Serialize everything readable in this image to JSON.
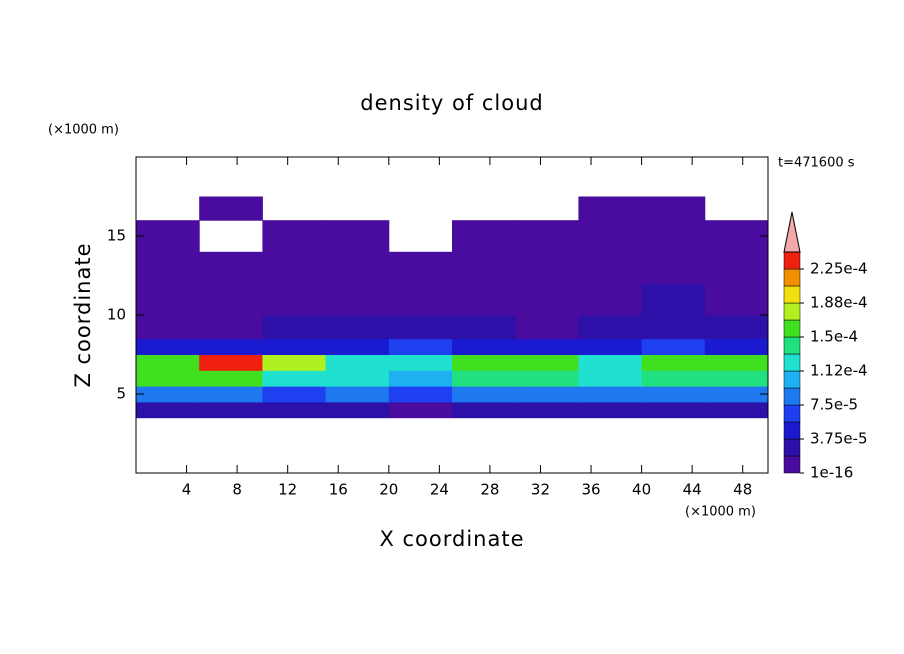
{
  "chart_data": {
    "type": "contour",
    "title": "density of cloud",
    "x_label": "X coordinate",
    "y_label": "Z coordinate",
    "x_unit": "(×1000 m)",
    "y_unit": "(×1000 m)",
    "time_label": "t=471600 s",
    "xlim": [
      0,
      50
    ],
    "ylim": [
      0,
      20
    ],
    "xticks": [
      4,
      8,
      12,
      16,
      20,
      24,
      28,
      32,
      36,
      40,
      44,
      48
    ],
    "yticks": [
      5,
      10,
      15
    ],
    "x_edges": [
      0,
      5,
      10,
      15,
      20,
      25,
      30,
      35,
      40,
      45,
      50
    ],
    "y_edges": [
      3.5,
      4.5,
      5.5,
      6.5,
      7.5,
      8.5,
      10,
      12,
      14,
      16,
      17.5
    ],
    "z": [
      [
        2.5e-05,
        2.5e-05,
        2e-05,
        2.5e-05,
        1.5e-05,
        2.5e-05,
        2.5e-05,
        2e-05,
        2.5e-05,
        2.5e-05
      ],
      [
        9e-05,
        9e-05,
        6e-05,
        8e-05,
        7e-05,
        9e-05,
        9e-05,
        8e-05,
        9e-05,
        9e-05
      ],
      [
        0.00015,
        0.00016,
        0.00013,
        0.00012,
        0.00011,
        0.00014,
        0.000145,
        0.00012,
        0.00014,
        0.00014
      ],
      [
        0.00016,
        0.00023,
        0.00017,
        0.00013,
        0.00012,
        0.00015,
        0.00016,
        0.00013,
        0.00015,
        0.00015
      ],
      [
        4e-05,
        5e-05,
        4e-05,
        4.5e-05,
        7e-05,
        4.5e-05,
        4e-05,
        5e-05,
        6e-05,
        5e-05
      ],
      [
        1.8e-05,
        1.8e-05,
        2e-05,
        2.2e-05,
        2.5e-05,
        2e-05,
        1.8e-05,
        2.5e-05,
        3.5e-05,
        2.5e-05
      ],
      [
        8e-06,
        8e-06,
        1e-05,
        1.2e-05,
        1e-05,
        8e-06,
        8e-06,
        1e-05,
        2e-05,
        1e-05
      ],
      [
        3e-06,
        3e-06,
        4e-06,
        5e-06,
        4e-06,
        3e-06,
        3e-06,
        4e-06,
        6e-06,
        4e-06
      ],
      [
        1e-06,
        null,
        1e-06,
        1e-06,
        null,
        1e-06,
        1e-06,
        1e-06,
        1e-06,
        1e-06
      ],
      [
        null,
        1e-06,
        null,
        null,
        null,
        null,
        null,
        1e-06,
        1e-06,
        null
      ]
    ],
    "colorbar": {
      "levels": [
        1e-16,
        1.875e-05,
        3.75e-05,
        5.625e-05,
        7.5e-05,
        9.375e-05,
        0.0001125,
        0.00013125,
        0.00015,
        0.00016875,
        0.0001875,
        0.00020625,
        0.000225,
        0.00024375
      ],
      "colors": [
        "#4a0c9e",
        "#2c10a8",
        "#1a1ad0",
        "#1e40f0",
        "#1e78f0",
        "#1eb0f0",
        "#20e0d0",
        "#20e080",
        "#40e020",
        "#b0f020",
        "#f0e010",
        "#f09000",
        "#f02010"
      ],
      "extend_color": "#f4a8a8",
      "ticks": [
        {
          "value": 1e-16,
          "label": "1e-16"
        },
        {
          "value": 3.75e-05,
          "label": "3.75e-5"
        },
        {
          "value": 7.5e-05,
          "label": "7.5e-5"
        },
        {
          "value": 0.0001125,
          "label": "1.12e-4"
        },
        {
          "value": 0.00015,
          "label": "1.5e-4"
        },
        {
          "value": 0.0001875,
          "label": "1.88e-4"
        },
        {
          "value": 0.000225,
          "label": "2.25e-4"
        }
      ]
    }
  }
}
